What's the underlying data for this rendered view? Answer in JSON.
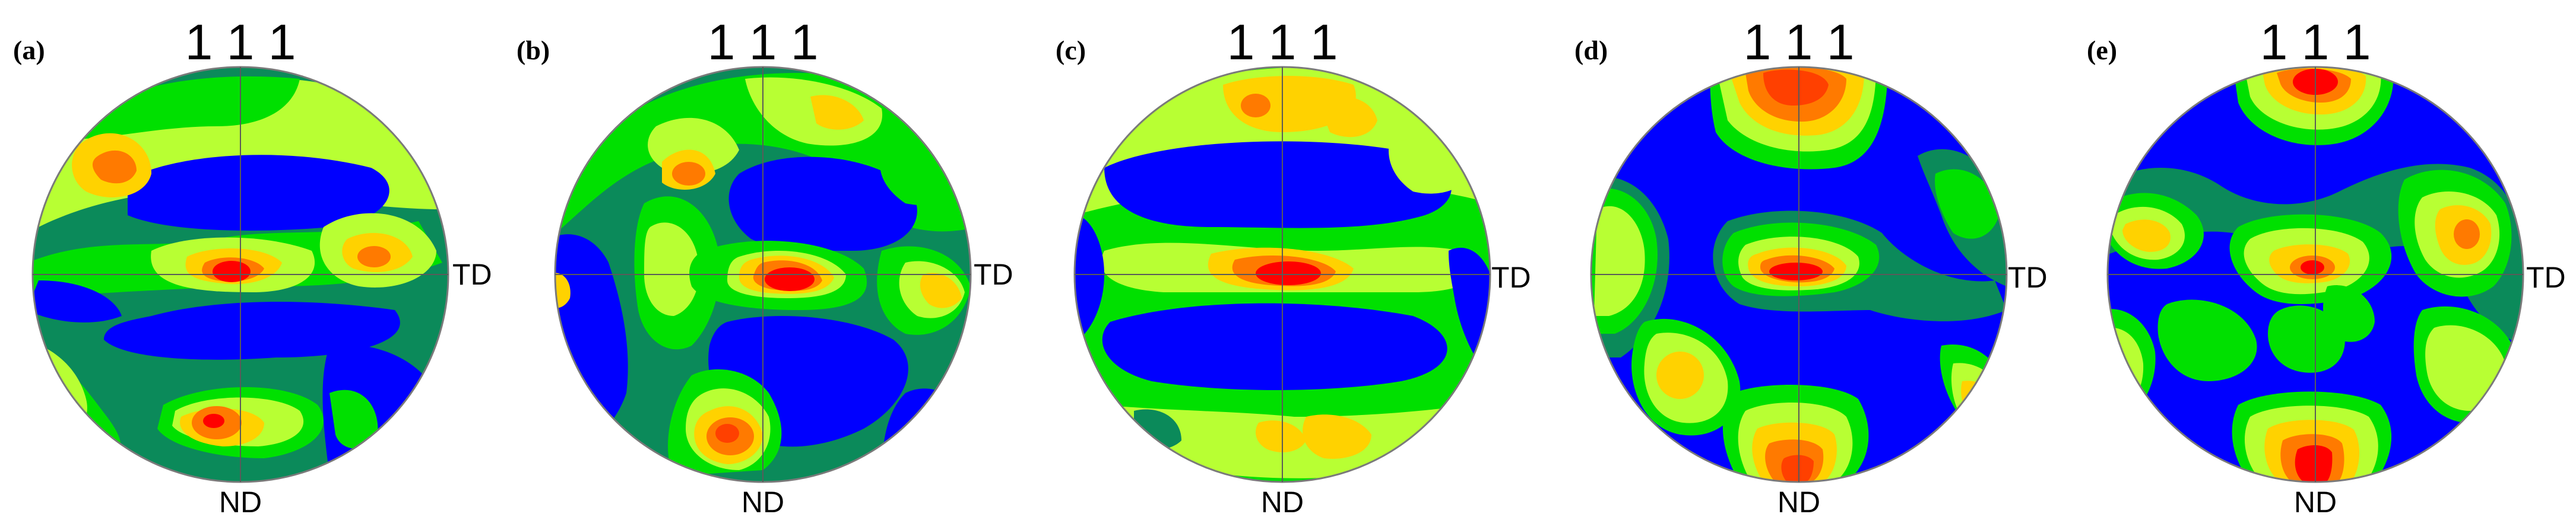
{
  "figure": {
    "panels": [
      {
        "label": "(a)",
        "pole_label": "1 1 1",
        "right_label": "TD",
        "bottom_label": "ND"
      },
      {
        "label": "(b)",
        "pole_label": "1 1 1",
        "right_label": "TD",
        "bottom_label": "ND"
      },
      {
        "label": "(c)",
        "pole_label": "1 1 1",
        "right_label": "TD",
        "bottom_label": "ND"
      },
      {
        "label": "(d)",
        "pole_label": "1 1 1",
        "right_label": "TD",
        "bottom_label": "ND"
      },
      {
        "label": "(e)",
        "pole_label": "1 1 1",
        "right_label": "TD",
        "bottom_label": "ND"
      }
    ],
    "colors": {
      "level_1": "#0000ff",
      "level_2": "#0b8a5a",
      "level_3": "#00e000",
      "level_4": "#b8ff33",
      "level_5": "#ffd200",
      "level_6": "#ff7a00",
      "level_7": "#ff0000"
    }
  }
}
